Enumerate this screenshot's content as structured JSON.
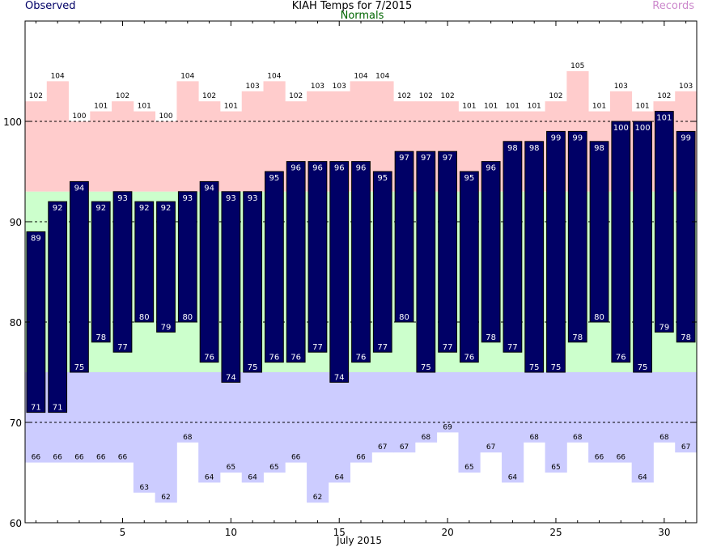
{
  "chart_data": {
    "type": "bar",
    "title": "KIAH Temps for 7/2015",
    "xlabel": "July 2015",
    "ylabel": "",
    "ylim": [
      60,
      110
    ],
    "xlim": [
      0.5,
      31.5
    ],
    "grid": true,
    "legend": {
      "observed": "Observed",
      "normals": "Normals",
      "records": "Records"
    },
    "colors": {
      "observed": "#000066",
      "normals_label": "#006600",
      "records_label": "#cc88cc",
      "record_band": "#ffcccc",
      "normal_band": "#ccffcc",
      "low_band": "#ccccff",
      "observed_legend": "#000066"
    },
    "x_ticks": [
      5,
      10,
      15,
      20,
      25,
      30
    ],
    "y_ticks": [
      60,
      70,
      80,
      90,
      100
    ],
    "y_gridlines": [
      70,
      80,
      90,
      100
    ],
    "days": [
      1,
      2,
      3,
      4,
      5,
      6,
      7,
      8,
      9,
      10,
      11,
      12,
      13,
      14,
      15,
      16,
      17,
      18,
      19,
      20,
      21,
      22,
      23,
      24,
      25,
      26,
      27,
      28,
      29,
      30,
      31
    ],
    "series": [
      {
        "name": "Observed",
        "high": [
          89,
          92,
          94,
          92,
          93,
          92,
          92,
          93,
          94,
          93,
          93,
          95,
          96,
          96,
          96,
          96,
          95,
          97,
          97,
          97,
          95,
          96,
          98,
          98,
          99,
          99,
          98,
          100,
          100,
          101,
          99
        ],
        "low": [
          71,
          71,
          75,
          78,
          77,
          80,
          79,
          80,
          76,
          74,
          75,
          76,
          76,
          77,
          74,
          76,
          77,
          80,
          75,
          77,
          76,
          78,
          77,
          75,
          75,
          78,
          80,
          76,
          75,
          79,
          78
        ]
      },
      {
        "name": "Normals",
        "high": [
          93,
          93,
          93,
          93,
          93,
          93,
          93,
          93,
          93,
          93,
          93,
          93,
          93,
          93,
          93,
          93,
          93,
          93,
          93,
          93,
          93,
          93,
          93,
          93,
          93,
          93,
          93,
          93,
          93,
          93,
          93
        ],
        "low": [
          75,
          75,
          75,
          75,
          75,
          75,
          75,
          75,
          75,
          75,
          75,
          75,
          75,
          75,
          75,
          75,
          75,
          75,
          75,
          75,
          75,
          75,
          75,
          75,
          75,
          75,
          75,
          75,
          75,
          75,
          75
        ]
      },
      {
        "name": "Records",
        "high": [
          102,
          104,
          100,
          101,
          102,
          101,
          100,
          104,
          102,
          101,
          103,
          104,
          102,
          103,
          103,
          104,
          104,
          102,
          102,
          102,
          101,
          101,
          101,
          101,
          102,
          105,
          101,
          103,
          101,
          102,
          103
        ],
        "low": [
          66,
          66,
          66,
          66,
          66,
          63,
          62,
          68,
          64,
          65,
          64,
          65,
          66,
          62,
          64,
          66,
          67,
          67,
          68,
          69,
          65,
          67,
          64,
          68,
          65,
          68,
          66,
          66,
          64,
          68,
          67
        ]
      }
    ]
  }
}
